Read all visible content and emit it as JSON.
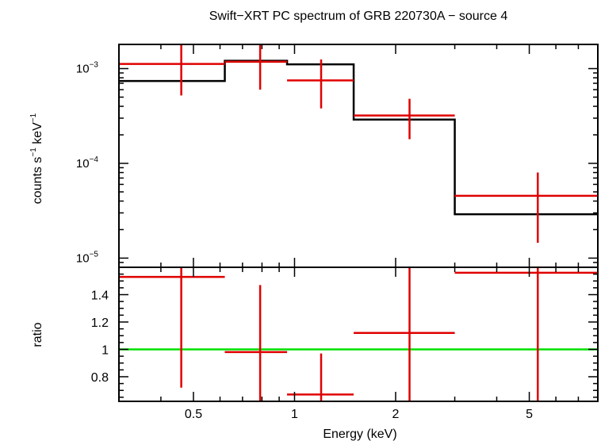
{
  "chart_data": {
    "type": "step-spectrum",
    "title": "Swift−XRT PC spectrum of GRB 220730A − source 4",
    "xlabel": "Energy (keV)",
    "xscale": "log",
    "xlim": [
      0.3,
      8.0
    ],
    "x_ticks": [
      {
        "value": 0.5,
        "label": "0.5"
      },
      {
        "value": 1,
        "label": "1"
      },
      {
        "value": 2,
        "label": "2"
      },
      {
        "value": 5,
        "label": "5"
      }
    ],
    "top_panel": {
      "ylabel": {
        "base": "counts s",
        "exp1": "−1",
        "mid": " keV",
        "exp2": "−1"
      },
      "yscale": "log",
      "ylim": [
        8e-06,
        0.0018
      ],
      "y_ticks": [
        {
          "value": 0.001,
          "base": "10",
          "exp": "−3"
        },
        {
          "value": 0.0001,
          "base": "10",
          "exp": "−4"
        },
        {
          "value": 1e-05,
          "base": "10",
          "exp": "−5"
        }
      ],
      "data_points": [
        {
          "x_lo": 0.3,
          "x_hi": 0.62,
          "x": 0.46,
          "y": 0.00112,
          "y_lo": 0.00052,
          "y_hi": 0.00185
        },
        {
          "x_lo": 0.62,
          "x_hi": 0.95,
          "x": 0.79,
          "y": 0.00118,
          "y_lo": 0.0006,
          "y_hi": 0.0019
        },
        {
          "x_lo": 0.95,
          "x_hi": 1.5,
          "x": 1.2,
          "y": 0.00075,
          "y_lo": 0.00038,
          "y_hi": 0.00125
        },
        {
          "x_lo": 1.5,
          "x_hi": 3.0,
          "x": 2.2,
          "y": 0.00032,
          "y_lo": 0.00018,
          "y_hi": 0.00048
        },
        {
          "x_lo": 3.0,
          "x_hi": 8.0,
          "x": 5.3,
          "y": 4.55e-05,
          "y_lo": 1.45e-05,
          "y_hi": 8e-05
        }
      ],
      "model_steps": [
        {
          "x_lo": 0.3,
          "x_hi": 0.62,
          "y": 0.00074
        },
        {
          "x_lo": 0.62,
          "x_hi": 0.95,
          "y": 0.00121
        },
        {
          "x_lo": 0.95,
          "x_hi": 1.5,
          "y": 0.00111
        },
        {
          "x_lo": 1.5,
          "x_hi": 3.0,
          "y": 0.00029
        },
        {
          "x_lo": 3.0,
          "x_hi": 8.0,
          "y": 2.9e-05
        }
      ]
    },
    "bottom_panel": {
      "ylabel": "ratio",
      "yscale": "linear",
      "ylim": [
        0.62,
        1.6
      ],
      "y_ticks": [
        {
          "value": 0.8,
          "label": "0.8"
        },
        {
          "value": 1.0,
          "label": "1"
        },
        {
          "value": 1.2,
          "label": "1.2"
        },
        {
          "value": 1.4,
          "label": "1.4"
        }
      ],
      "reference_line": 1.0,
      "data_points": [
        {
          "x_lo": 0.3,
          "x_hi": 0.62,
          "x": 0.46,
          "y": 1.53,
          "y_lo": 0.72,
          "y_hi": 1.62
        },
        {
          "x_lo": 0.62,
          "x_hi": 0.95,
          "x": 0.79,
          "y": 0.98,
          "y_lo": 0.62,
          "y_hi": 1.47
        },
        {
          "x_lo": 0.95,
          "x_hi": 1.5,
          "x": 1.2,
          "y": 0.67,
          "y_lo": 0.62,
          "y_hi": 0.97
        },
        {
          "x_lo": 1.5,
          "x_hi": 3.0,
          "x": 2.2,
          "y": 1.12,
          "y_lo": 0.62,
          "y_hi": 1.62
        },
        {
          "x_lo": 3.0,
          "x_hi": 8.0,
          "x": 5.3,
          "y": 1.56,
          "y_lo": 0.62,
          "y_hi": 1.62
        }
      ]
    },
    "colors": {
      "data": "#e00000",
      "model": "#000000",
      "reference": "#00e000",
      "axis": "#000000"
    }
  }
}
